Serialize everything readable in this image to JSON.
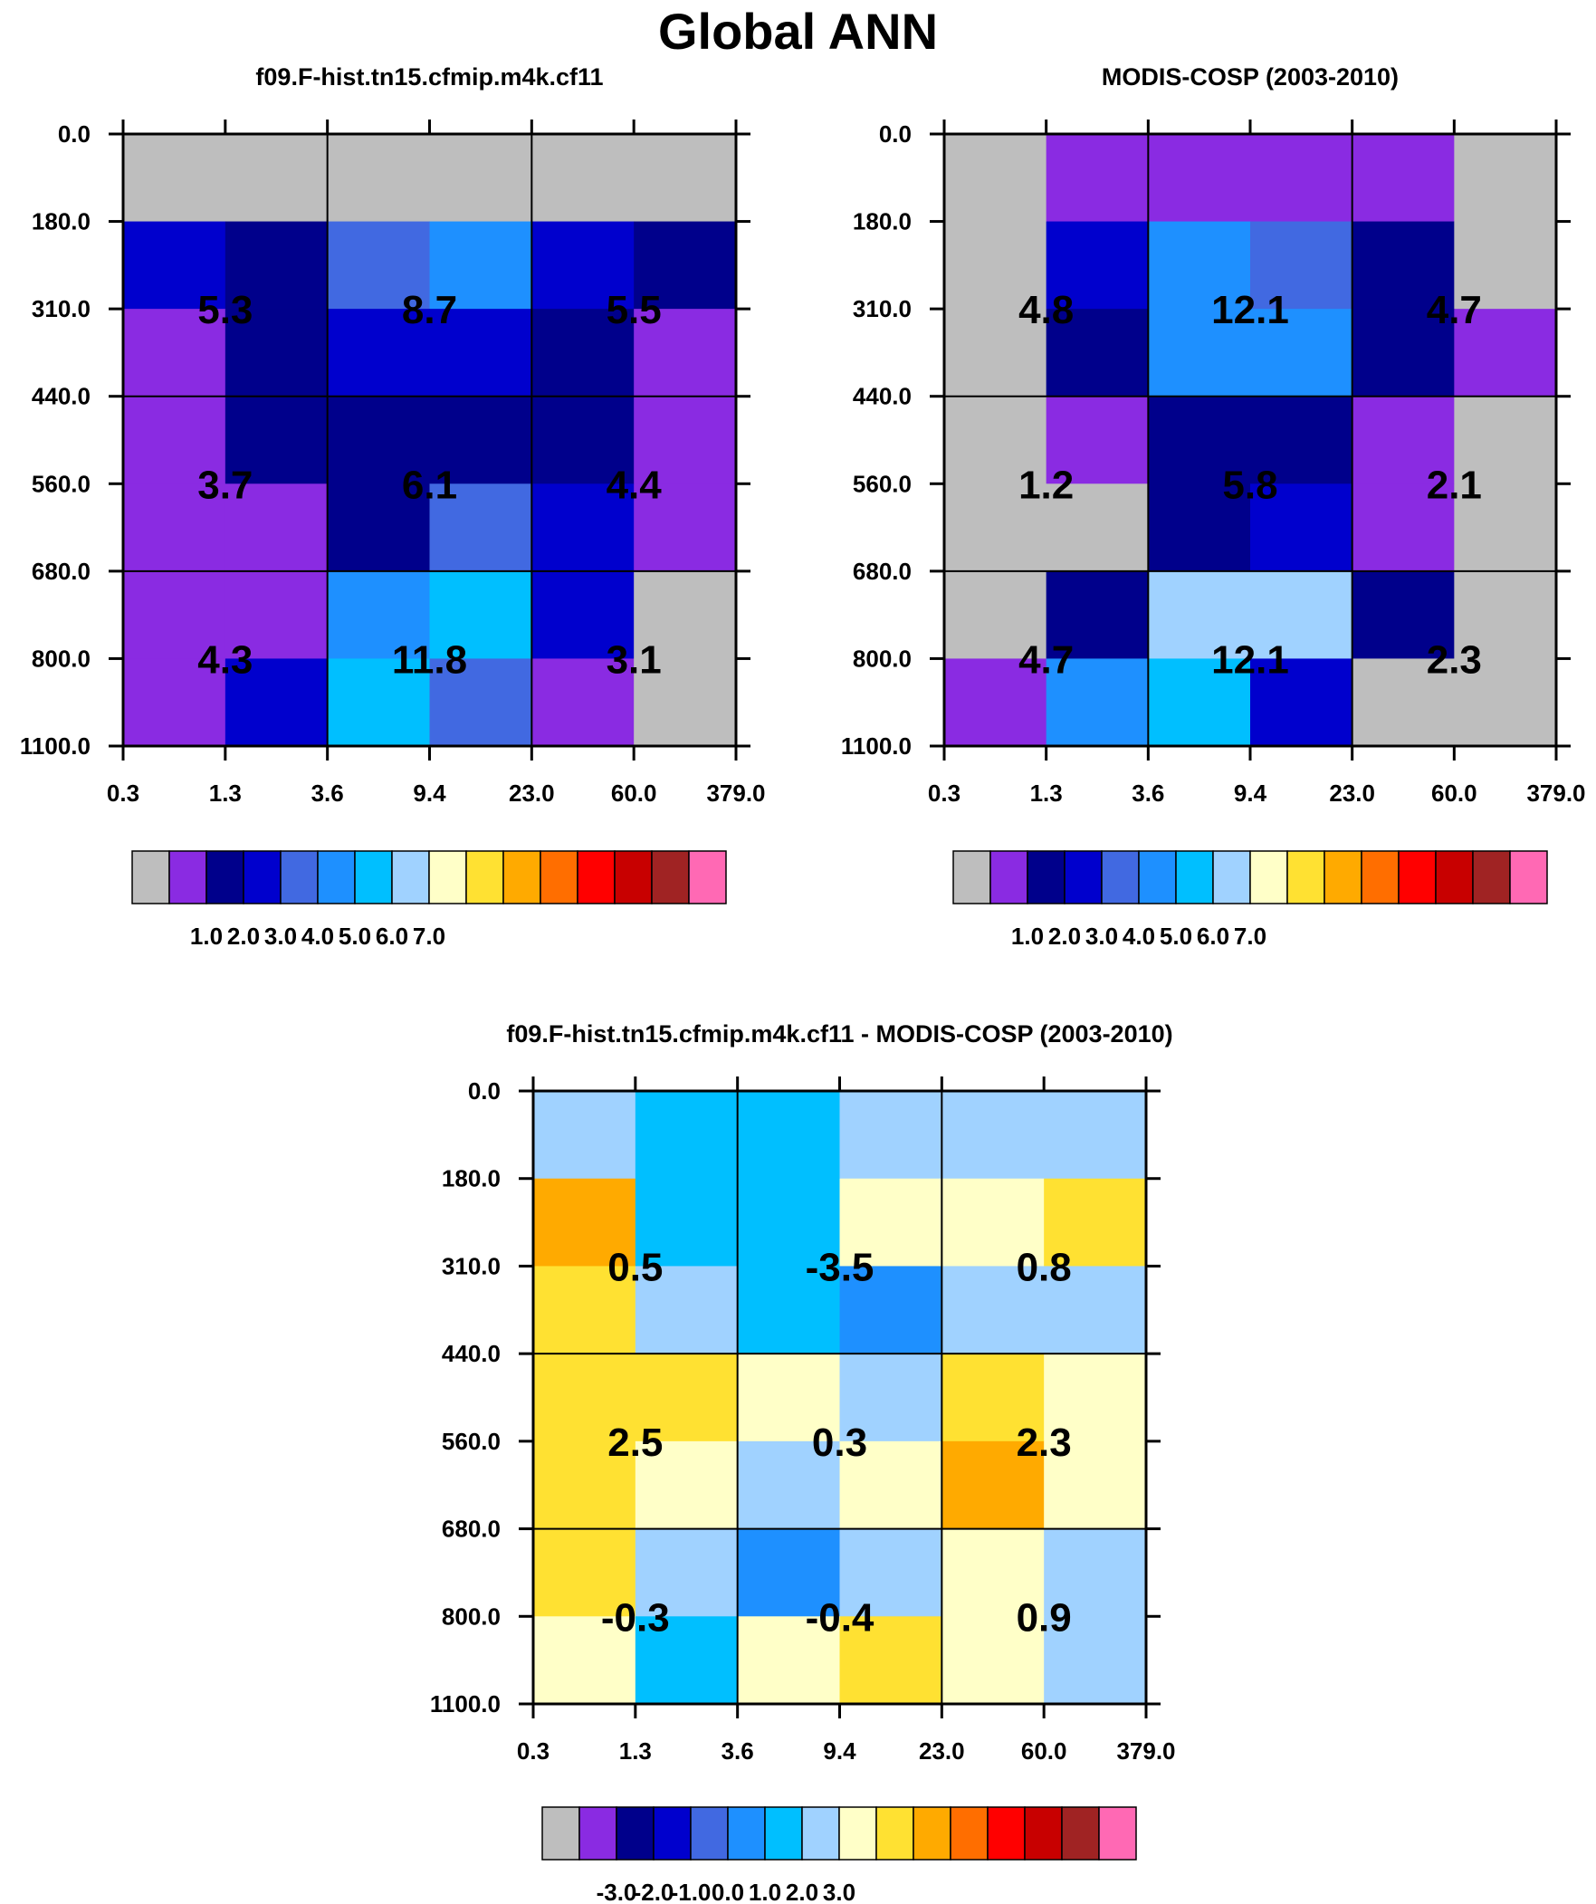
{
  "title": "Global ANN",
  "colors": {
    "missing": "#bebebe",
    "palette": [
      "#bebebe",
      "#8a2be2",
      "#00008b",
      "#0000cd",
      "#4169e1",
      "#1e90ff",
      "#00bfff",
      "#a0d2ff",
      "#ffffc8",
      "#ffe132",
      "#ffaa00",
      "#ff6e00",
      "#ff0000",
      "#c80000",
      "#a02323",
      "#ff69b4"
    ]
  },
  "axes": {
    "y_ticks": [
      "0.0",
      "180.0",
      "310.0",
      "440.0",
      "560.0",
      "680.0",
      "800.0",
      "1100.0"
    ],
    "x_ticks": [
      "0.3",
      "1.3",
      "3.6",
      "9.4",
      "23.0",
      "60.0",
      "379.0"
    ]
  },
  "chart_data": [
    {
      "type": "heatmap",
      "title": "f09.F-hist.tn15.cfmip.m4k.cf11",
      "cell_color_index": [
        [
          0,
          0,
          0,
          0,
          0,
          0
        ],
        [
          3,
          2,
          4,
          5,
          3,
          2
        ],
        [
          1,
          2,
          3,
          3,
          2,
          1
        ],
        [
          1,
          2,
          2,
          2,
          2,
          1
        ],
        [
          1,
          1,
          2,
          4,
          3,
          1
        ],
        [
          1,
          1,
          5,
          6,
          3,
          0
        ],
        [
          1,
          3,
          6,
          4,
          1,
          0
        ]
      ],
      "box_values": [
        [
          "5.3",
          "8.7",
          "5.5"
        ],
        [
          "3.7",
          "6.1",
          "4.4"
        ],
        [
          "4.3",
          "11.8",
          "3.1"
        ]
      ],
      "colorbar": {
        "boxes": 16,
        "labels": [
          "1.0",
          "2.0",
          "3.0",
          "4.0",
          "5.0",
          "6.0",
          "7.0"
        ]
      }
    },
    {
      "type": "heatmap",
      "title": "MODIS-COSP (2003-2010)",
      "cell_color_index": [
        [
          0,
          1,
          1,
          1,
          1,
          0
        ],
        [
          0,
          3,
          5,
          4,
          2,
          0
        ],
        [
          0,
          2,
          5,
          5,
          2,
          1
        ],
        [
          0,
          1,
          2,
          2,
          1,
          0
        ],
        [
          0,
          0,
          2,
          3,
          1,
          0
        ],
        [
          0,
          2,
          7,
          7,
          2,
          0
        ],
        [
          1,
          5,
          6,
          3,
          0,
          0
        ]
      ],
      "box_values": [
        [
          "4.8",
          "12.1",
          "4.7"
        ],
        [
          "1.2",
          "5.8",
          "2.1"
        ],
        [
          "4.7",
          "12.1",
          "2.3"
        ]
      ],
      "colorbar": {
        "boxes": 16,
        "labels": [
          "1.0",
          "2.0",
          "3.0",
          "4.0",
          "5.0",
          "6.0",
          "7.0"
        ]
      }
    },
    {
      "type": "heatmap",
      "title": "f09.F-hist.tn15.cfmip.m4k.cf11 - MODIS-COSP (2003-2010)",
      "cell_color_index": [
        [
          7,
          6,
          6,
          7,
          7,
          7
        ],
        [
          10,
          6,
          6,
          8,
          8,
          9
        ],
        [
          9,
          7,
          6,
          5,
          7,
          7
        ],
        [
          9,
          9,
          8,
          7,
          9,
          8
        ],
        [
          9,
          8,
          7,
          8,
          10,
          8
        ],
        [
          9,
          7,
          5,
          7,
          8,
          7
        ],
        [
          8,
          6,
          8,
          9,
          8,
          7
        ]
      ],
      "box_values": [
        [
          "0.5",
          "-3.5",
          "0.8"
        ],
        [
          "2.5",
          "0.3",
          "2.3"
        ],
        [
          "-0.3",
          "-0.4",
          "0.9"
        ]
      ],
      "colorbar": {
        "boxes": 16,
        "labels": [
          "-3.0",
          "-2.0",
          "-1.0",
          "0.0",
          "1.0",
          "2.0",
          "3.0"
        ]
      }
    }
  ]
}
